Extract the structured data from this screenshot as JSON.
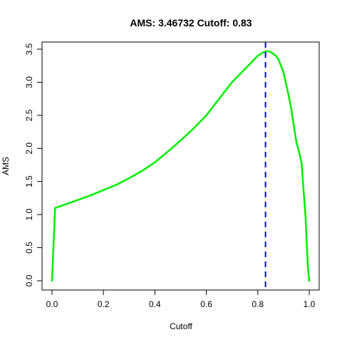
{
  "chart_data": {
    "type": "line",
    "title": "AMS: 3.46732 Cutoff: 0.83",
    "xlabel": "Cutoff",
    "ylabel": "AMS",
    "xlim": [
      0.0,
      1.0
    ],
    "ylim": [
      0.0,
      3.5
    ],
    "x_ticks": [
      "0.0",
      "0.2",
      "0.4",
      "0.6",
      "0.8",
      "1.0"
    ],
    "y_ticks": [
      "0.0",
      "0.5",
      "1.0",
      "1.5",
      "2.0",
      "2.5",
      "3.0",
      "3.5"
    ],
    "grid": false,
    "series": [
      {
        "color": "#00ee00",
        "x": [
          0.0,
          0.012,
          0.02,
          0.05,
          0.1,
          0.15,
          0.2,
          0.25,
          0.3,
          0.35,
          0.4,
          0.45,
          0.5,
          0.55,
          0.6,
          0.65,
          0.7,
          0.75,
          0.8,
          0.82,
          0.835,
          0.85,
          0.87,
          0.88,
          0.9,
          0.92,
          0.93,
          0.95,
          0.96,
          0.97,
          0.985,
          0.99,
          0.995,
          1.0
        ],
        "y": [
          0.0,
          1.1,
          1.11,
          1.15,
          1.22,
          1.29,
          1.37,
          1.45,
          1.55,
          1.66,
          1.79,
          1.95,
          2.12,
          2.3,
          2.5,
          2.75,
          3.0,
          3.2,
          3.4,
          3.45,
          3.47,
          3.46,
          3.4,
          3.35,
          3.15,
          2.8,
          2.6,
          2.1,
          1.95,
          1.78,
          1.0,
          0.6,
          0.2,
          0.0
        ]
      }
    ],
    "cutoff_line": {
      "x": 0.83,
      "color": "#0000ff",
      "style": "dashed"
    }
  }
}
